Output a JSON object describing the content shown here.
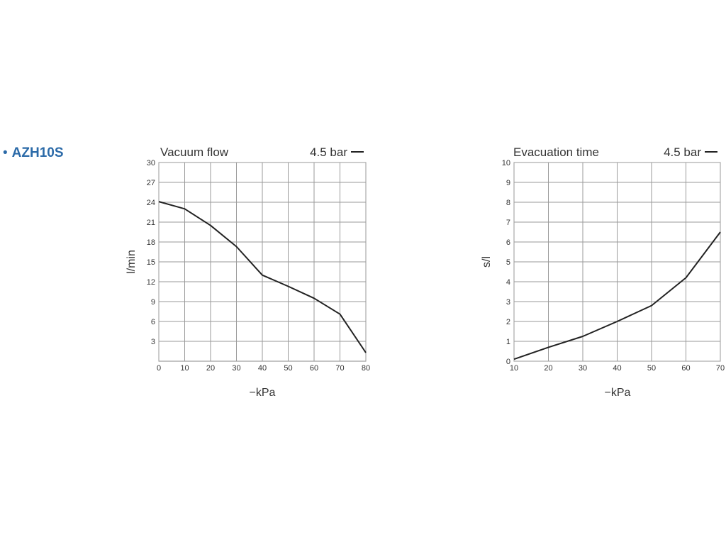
{
  "product": {
    "bullet": "•",
    "name": "AZH10S"
  },
  "chart_data": [
    {
      "type": "line",
      "title": "Vacuum flow",
      "xlabel": "−kPa",
      "ylabel": "l/min",
      "xlim": [
        0,
        80
      ],
      "ylim": [
        0,
        30
      ],
      "xticks": [
        0,
        10,
        20,
        30,
        40,
        50,
        60,
        70,
        80
      ],
      "yticks": [
        3,
        6,
        9,
        12,
        15,
        18,
        21,
        24,
        27,
        30
      ],
      "grid": true,
      "legend_position": "top-right",
      "series": [
        {
          "name": "4.5 bar",
          "color": "#222222",
          "x": [
            0,
            10,
            20,
            30,
            40,
            50,
            60,
            70,
            80
          ],
          "y": [
            24.1,
            23.0,
            20.5,
            17.3,
            13.0,
            11.3,
            9.5,
            7.1,
            1.3
          ]
        }
      ]
    },
    {
      "type": "line",
      "title": "Evacuation time",
      "xlabel": "−kPa",
      "ylabel": "s/l",
      "xlim": [
        10,
        70
      ],
      "ylim": [
        0,
        10
      ],
      "xticks": [
        10,
        20,
        30,
        40,
        50,
        60,
        70
      ],
      "yticks": [
        0,
        1,
        2,
        3,
        4,
        5,
        6,
        7,
        8,
        9,
        10
      ],
      "grid": true,
      "legend_position": "top-right",
      "series": [
        {
          "name": "4.5 bar",
          "color": "#222222",
          "x": [
            10,
            20,
            30,
            40,
            50,
            60,
            70
          ],
          "y": [
            0.1,
            0.7,
            1.25,
            2.0,
            2.8,
            4.2,
            6.5
          ]
        }
      ]
    }
  ]
}
